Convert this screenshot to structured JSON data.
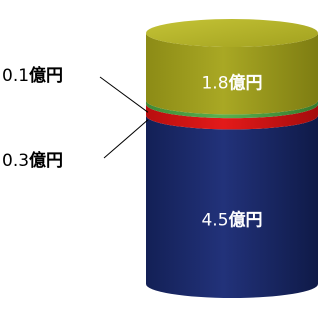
{
  "chart_data": {
    "type": "bar",
    "style": "stacked-3d-cylinder",
    "unit": "億円",
    "segments": [
      {
        "value": 4.5,
        "value_text": "4.5",
        "color": "#1b2a6b",
        "label_position": "inside"
      },
      {
        "value": 0.3,
        "value_text": "0.3",
        "color": "#d91414",
        "label_position": "outside-left"
      },
      {
        "value": 0.1,
        "value_text": "0.1",
        "color": "#4e9e43",
        "label_position": "outside-left"
      },
      {
        "value": 1.8,
        "value_text": "1.8",
        "color": "#9b9a1c",
        "label_position": "inside"
      }
    ]
  }
}
